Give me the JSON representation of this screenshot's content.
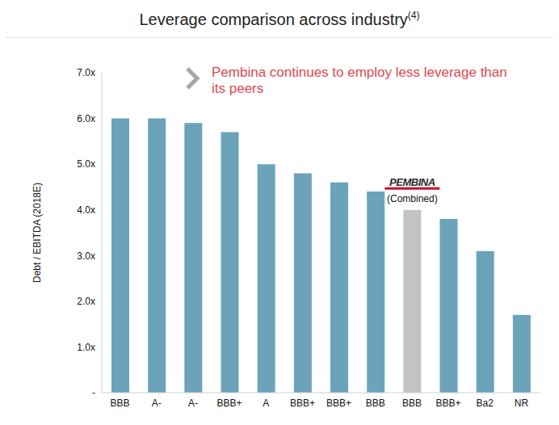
{
  "chart_data": {
    "type": "bar",
    "title": "Leverage comparison across industry",
    "title_footnote": "(4)",
    "annotations": [
      "Pembina continues to employ less leverage than its peers"
    ],
    "y_label": "Debt / EBITDA (2018E)",
    "categories": [
      "BBB",
      "A-",
      "A-",
      "BBB+",
      "A",
      "BBB+",
      "BBB+",
      "BBB",
      "BBB",
      "BBB+",
      "Ba2",
      "NR"
    ],
    "values": [
      6.0,
      6.0,
      5.9,
      5.7,
      5.0,
      4.8,
      4.6,
      4.4,
      4.0,
      3.8,
      3.1,
      1.7
    ],
    "colors": [
      "#6ba3bb",
      "#6ba3bb",
      "#6ba3bb",
      "#6ba3bb",
      "#6ba3bb",
      "#6ba3bb",
      "#6ba3bb",
      "#6ba3bb",
      "#c3c3c3",
      "#6ba3bb",
      "#6ba3bb",
      "#6ba3bb"
    ],
    "bar_annotations": [
      null,
      null,
      null,
      null,
      null,
      null,
      null,
      null,
      [
        "PEMBINA",
        "(Combined)"
      ],
      null,
      null,
      null
    ],
    "ylim": [
      0,
      7
    ],
    "yticks": [
      {
        "value": 0,
        "label": "-"
      },
      {
        "value": 1,
        "label": "1.0x"
      },
      {
        "value": 2,
        "label": "2.0x"
      },
      {
        "value": 3,
        "label": "3.0x"
      },
      {
        "value": 4,
        "label": "4.0x"
      },
      {
        "value": 5,
        "label": "5.0x"
      },
      {
        "value": 6,
        "label": "6.0x"
      },
      {
        "value": 7,
        "label": "7.0x"
      }
    ],
    "grid": false
  }
}
